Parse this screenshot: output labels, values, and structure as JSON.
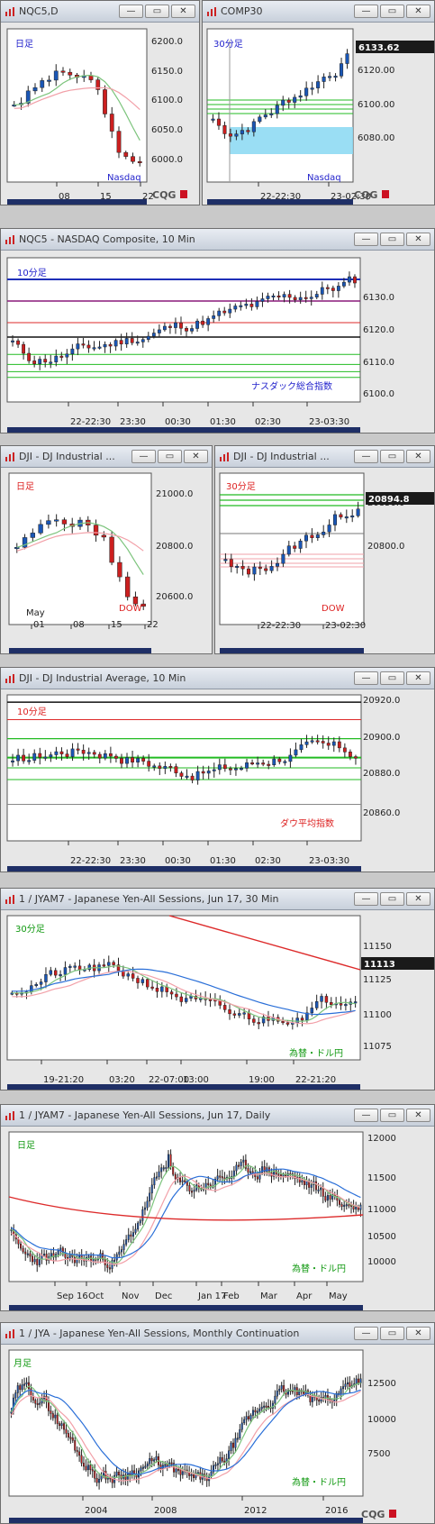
{
  "colors": {
    "up": "#1a56b5",
    "down": "#cc1f1f",
    "ma_green": "#7cc47c",
    "ma_pink": "#f2a0a8",
    "ma_red": "#dd2a2a",
    "ma_blue": "#2a6fd8",
    "level_green": "#22bb22",
    "level_blue": "#1e2fb8",
    "level_purple": "#8a1a7a",
    "level_black": "#111111",
    "timeframe_blue": "#2222cc",
    "timeframe_red": "#dd2222",
    "timeframe_green": "#119911",
    "highlight": "#88d8f2",
    "last_price_bg": "#1a1a1a",
    "cqg_red": "#cc1122"
  },
  "windows": [
    {
      "id": "w1",
      "title": "NQC5,D",
      "label": "日足",
      "label_color": "timeframe_blue",
      "name_tag": "Nasdaq",
      "name_color": "timeframe_blue",
      "y_ticks": [
        "6200.0",
        "6150.0",
        "6100.0",
        "6050.0",
        "6000.0"
      ],
      "x_ticks": [
        "08",
        "15",
        "22"
      ],
      "logo": "CQG"
    },
    {
      "id": "w2",
      "title": "COMP30",
      "label": "30分足",
      "label_color": "timeframe_blue",
      "name_tag": "Nasdaq",
      "name_color": "timeframe_blue",
      "last_price": "6133.62",
      "y_ticks": [
        "6120.00",
        "6100.00",
        "6080.00"
      ],
      "x_ticks": [
        "22-22:30",
        "23-02:30"
      ],
      "logo": "CQG"
    },
    {
      "id": "w3",
      "title": "NQC5 - NASDAQ Composite, 10 Min",
      "label": "10分足",
      "label_color": "timeframe_blue",
      "name_tag": "ナスダック総合指数",
      "name_color": "timeframe_blue",
      "y_ticks": [
        "6130.0",
        "6120.0",
        "6110.0",
        "6100.0"
      ],
      "x_ticks": [
        "22-22:30",
        "23:30",
        "00:30",
        "01:30",
        "02:30",
        "23-03:30"
      ]
    },
    {
      "id": "w4",
      "title": "DJI - DJ Industrial ...",
      "label": "日足",
      "label_color": "timeframe_red",
      "name_tag": "DOW",
      "name_color": "timeframe_red",
      "y_ticks": [
        "21000.0",
        "20800.0",
        "20600.0"
      ],
      "x_ticks": [
        "01",
        "08",
        "15",
        "22"
      ],
      "month": "May"
    },
    {
      "id": "w5",
      "title": "DJI - DJ Industrial ...",
      "label": "30分足",
      "label_color": "timeframe_red",
      "name_tag": "DOW",
      "name_color": "timeframe_red",
      "last_price": "20894.8",
      "y_ticks": [
        "20850.0",
        "20800.0"
      ],
      "x_ticks": [
        "22-22:30",
        "23-02:30"
      ]
    },
    {
      "id": "w6",
      "title": "DJI - DJ Industrial Average, 10 Min",
      "label": "10分足",
      "label_color": "timeframe_red",
      "name_tag": "ダウ平均指数",
      "name_color": "timeframe_red",
      "y_ticks": [
        "20920.0",
        "20900.0",
        "20880.0",
        "20860.0"
      ],
      "x_ticks": [
        "22-22:30",
        "23:30",
        "00:30",
        "01:30",
        "02:30",
        "23-03:30"
      ]
    },
    {
      "id": "w7",
      "title": "1 / JYAM7 - Japanese Yen-All Sessions, Jun 17, 30 Min",
      "label": "30分足",
      "label_color": "timeframe_green",
      "name_tag": "為替・ドル円",
      "name_color": "timeframe_green",
      "last_price": "11113",
      "y_ticks": [
        "11150",
        "11125",
        "11100",
        "11075"
      ],
      "x_ticks": [
        "19-21:20",
        "03:20",
        "22-07:00",
        "13:00",
        "19:00",
        "22-21:20"
      ]
    },
    {
      "id": "w8",
      "title": "1 / JYAM7 - Japanese Yen-All Sessions, Jun 17, Daily",
      "label": "日足",
      "label_color": "timeframe_green",
      "name_tag": "為替・ドル円",
      "name_color": "timeframe_green",
      "y_ticks": [
        "12000",
        "11500",
        "11000",
        "10500",
        "10000"
      ],
      "x_ticks": [
        "Sep 16",
        "Oct",
        "Nov",
        "Dec",
        "Jan 17",
        "Feb",
        "Mar",
        "Apr",
        "May"
      ]
    },
    {
      "id": "w9",
      "title": "1 / JYA - Japanese Yen-All Sessions, Monthly Continuation",
      "label": "月足",
      "label_color": "timeframe_green",
      "name_tag": "為替・ドル円",
      "name_color": "timeframe_green",
      "y_ticks": [
        "12500",
        "10000",
        "7500"
      ],
      "x_ticks": [
        "2004",
        "2008",
        "2012",
        "2016"
      ],
      "logo": "CQG"
    }
  ],
  "buttons": {
    "minimize": "—",
    "restore": "▭",
    "close": "✕"
  }
}
